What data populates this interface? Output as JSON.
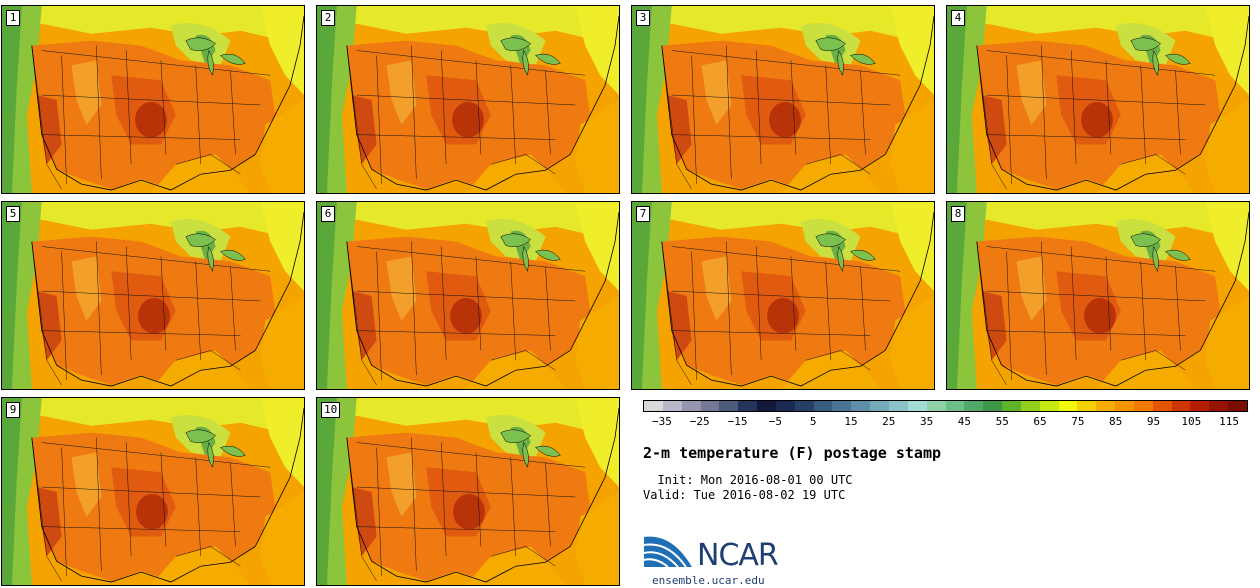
{
  "panels": [
    {
      "label": "1"
    },
    {
      "label": "2"
    },
    {
      "label": "3"
    },
    {
      "label": "4"
    },
    {
      "label": "5"
    },
    {
      "label": "6"
    },
    {
      "label": "7"
    },
    {
      "label": "8"
    },
    {
      "label": "9"
    },
    {
      "label": "10"
    }
  ],
  "colorbar": {
    "colors": [
      "#d9d9d9",
      "#b8b8c8",
      "#9595ad",
      "#747894",
      "#4e5a7a",
      "#26335a",
      "#12193a",
      "#1b2a52",
      "#263f66",
      "#385b80",
      "#4b7496",
      "#5f8ea8",
      "#74a9b9",
      "#8ac2c7",
      "#a4dcd5",
      "#8fd0a8",
      "#6ebe87",
      "#52a868",
      "#3f9548",
      "#5fb32c",
      "#93cf1c",
      "#c8e812",
      "#f3f70a",
      "#f6d100",
      "#f6ac00",
      "#f59300",
      "#f27900",
      "#e25600",
      "#cf3500",
      "#b31f00",
      "#951300",
      "#7a0c00"
    ],
    "ticks": [
      "−35",
      "−25",
      "−15",
      "−5",
      "5",
      "15",
      "25",
      "35",
      "45",
      "55",
      "65",
      "75",
      "85",
      "95",
      "105",
      "115"
    ]
  },
  "title": "2-m temperature (F) postage stamp",
  "init": "  Init: Mon 2016-08-01 00 UTC",
  "valid": "Valid: Tue 2016-08-02 19 UTC",
  "logo": {
    "text": "NCAR",
    "url": "ensemble.ucar.edu"
  }
}
